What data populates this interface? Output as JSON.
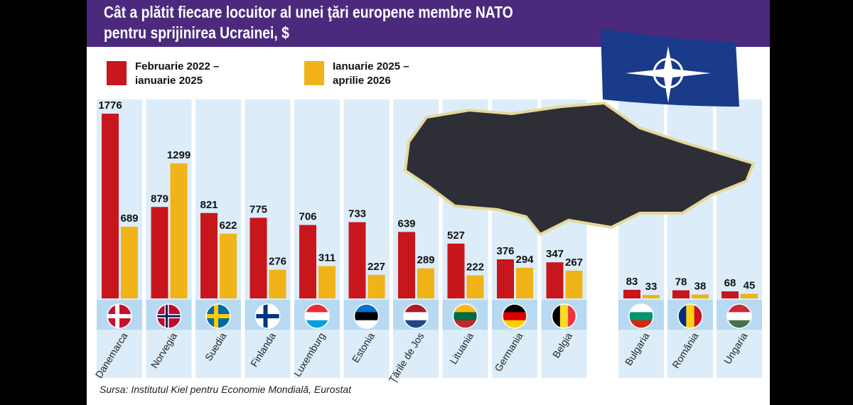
{
  "chart_data": {
    "type": "bar",
    "title": "Cât a plătit fiecare locuitor al unei ţări europene membre NATO pentru sprijinirea Ucrainei, $",
    "categories": [
      "Danemarca",
      "Norvegia",
      "Suedia",
      "Finlanda",
      "Luxemburg",
      "Estonia",
      "Ţările de Jos",
      "Lituania",
      "Germania",
      "Belgia",
      "Bulgaria",
      "România",
      "Ungaria"
    ],
    "series": [
      {
        "name": "Februarie 2022 – ianuarie 2025",
        "color": "#c8161d",
        "values": [
          1776,
          879,
          821,
          775,
          706,
          733,
          639,
          527,
          376,
          347,
          83,
          78,
          68
        ]
      },
      {
        "name": "Ianuarie 2025 – aprilie 2026",
        "color": "#f0b418",
        "values": [
          689,
          1299,
          622,
          276,
          311,
          227,
          289,
          222,
          294,
          267,
          33,
          38,
          45
        ]
      }
    ],
    "source": "Sursa: Institutul Kiel pentru Economie Mondială, Eurostat"
  }
}
